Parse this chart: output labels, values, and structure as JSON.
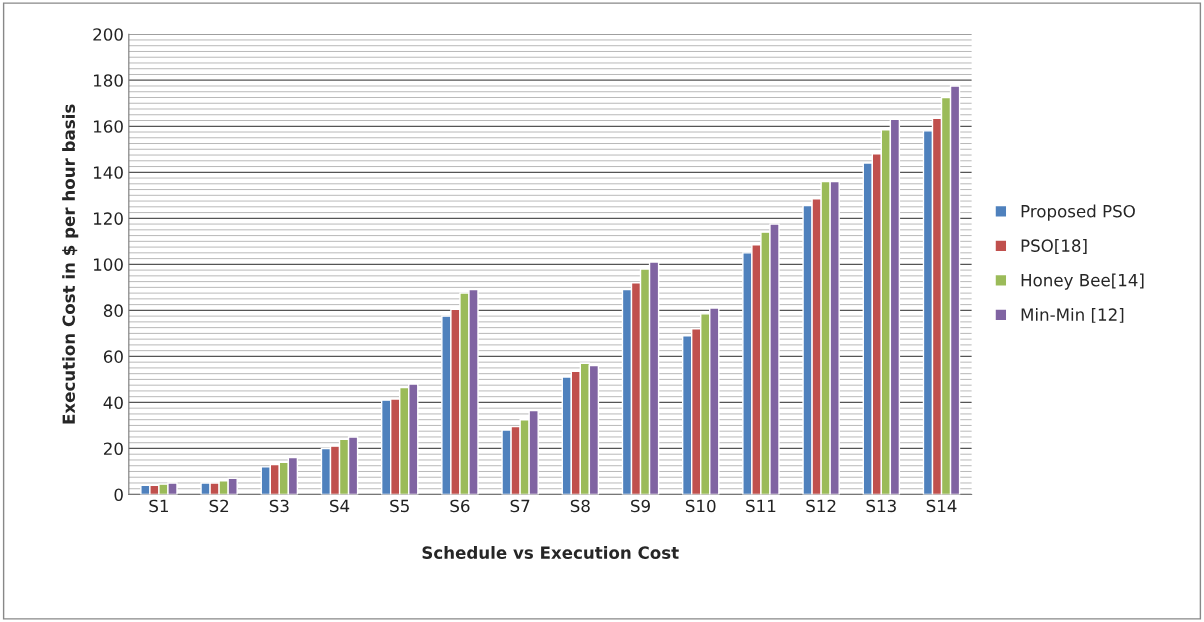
{
  "chart_data": {
    "type": "bar",
    "xlabel": "Schedule vs Execution Cost",
    "ylabel": "Execution Cost in $ per hour basis",
    "categories": [
      "S1",
      "S2",
      "S3",
      "S4",
      "S5",
      "S6",
      "S7",
      "S8",
      "S9",
      "S10",
      "S11",
      "S12",
      "S13",
      "S14"
    ],
    "series": [
      {
        "name": "Proposed PSO",
        "color": "#4f81bd",
        "values": [
          4,
          5,
          12,
          20,
          41,
          77.5,
          28,
          51,
          89,
          69,
          105,
          125.5,
          144,
          158
        ]
      },
      {
        "name": "PSO[18]",
        "color": "#c0504d",
        "values": [
          4,
          5,
          13,
          21,
          41.5,
          80.5,
          29.5,
          53.5,
          92,
          72,
          108.5,
          128.5,
          148,
          163.5
        ]
      },
      {
        "name": "Honey Bee[14]",
        "color": "#9bbb59",
        "values": [
          4.5,
          6,
          14,
          24,
          46.5,
          87.5,
          32.5,
          57,
          98,
          78.5,
          114,
          136,
          158.5,
          172.5
        ]
      },
      {
        "name": "Min-Min [12]",
        "color": "#8064a2",
        "values": [
          5,
          7,
          16,
          25,
          48,
          89,
          36.5,
          56,
          101,
          81,
          117.5,
          136,
          163,
          177.5
        ]
      }
    ],
    "ylim": [
      0,
      200
    ],
    "yticks": [
      0,
      20,
      40,
      60,
      80,
      100,
      120,
      140,
      160,
      180,
      200
    ],
    "grid": "y",
    "legend": "right"
  }
}
